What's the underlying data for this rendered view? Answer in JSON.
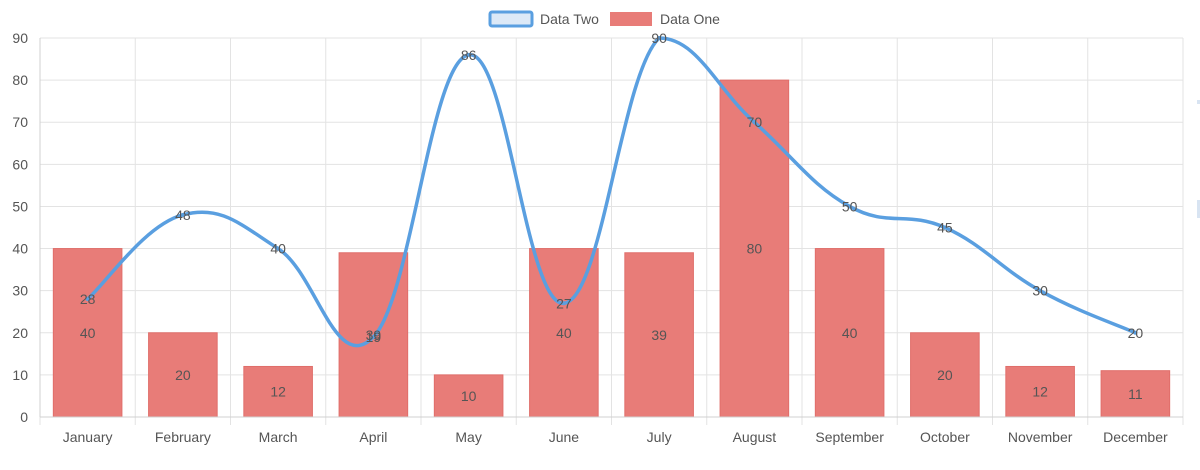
{
  "chart_data": {
    "type": "bar",
    "categories": [
      "January",
      "February",
      "March",
      "April",
      "May",
      "June",
      "July",
      "August",
      "September",
      "October",
      "November",
      "December"
    ],
    "series": [
      {
        "name": "Data One",
        "type": "bar",
        "color": "#e87c78",
        "values": [
          40,
          20,
          12,
          39,
          10,
          40,
          39,
          80,
          40,
          20,
          12,
          11
        ]
      },
      {
        "name": "Data Two",
        "type": "line",
        "color": "#5a9fe0",
        "fill": "#dce9f7",
        "values": [
          28,
          48,
          40,
          19,
          86,
          27,
          90,
          70,
          50,
          45,
          30,
          20
        ]
      }
    ],
    "legend_order": [
      1,
      0
    ],
    "legend_position": "top-center",
    "ylim": [
      0,
      90
    ],
    "yticks": [
      0,
      10,
      20,
      30,
      40,
      50,
      60,
      70,
      80,
      90
    ],
    "grid": true,
    "data_labels": true,
    "title": "",
    "xlabel": "",
    "ylabel": ""
  }
}
